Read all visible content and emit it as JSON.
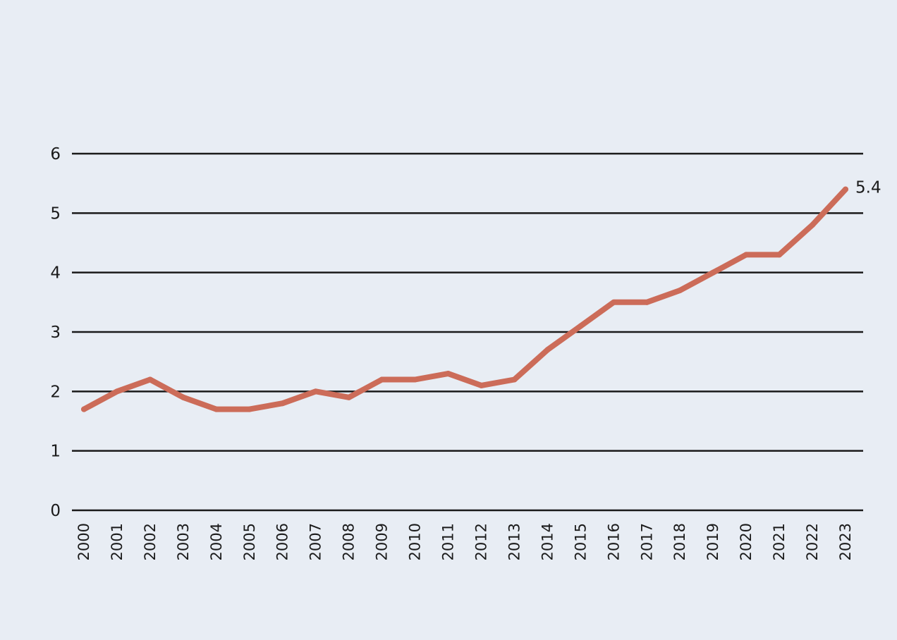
{
  "chart_data": {
    "type": "line",
    "x": [
      "2000",
      "2001",
      "2002",
      "2003",
      "2004",
      "2005",
      "2006",
      "2007",
      "2008",
      "2009",
      "2010",
      "2011",
      "2012",
      "2013",
      "2014",
      "2015",
      "2016",
      "2017",
      "2018",
      "2019",
      "2020",
      "2021",
      "2022",
      "2023"
    ],
    "series": [
      {
        "values": [
          1.7,
          2.0,
          2.2,
          1.9,
          1.7,
          1.7,
          1.8,
          2.0,
          1.9,
          2.2,
          2.2,
          2.3,
          2.1,
          2.2,
          2.7,
          3.1,
          3.5,
          3.5,
          3.7,
          4.0,
          4.3,
          4.3,
          4.8,
          5.4
        ],
        "color": "#cc6c59"
      }
    ],
    "ylim": [
      0,
      6
    ],
    "yticks": [
      "0",
      "1",
      "2",
      "3",
      "4",
      "5",
      "6"
    ],
    "grid": true,
    "end_label": "5.4",
    "title": "",
    "xlabel": "",
    "ylabel": ""
  }
}
